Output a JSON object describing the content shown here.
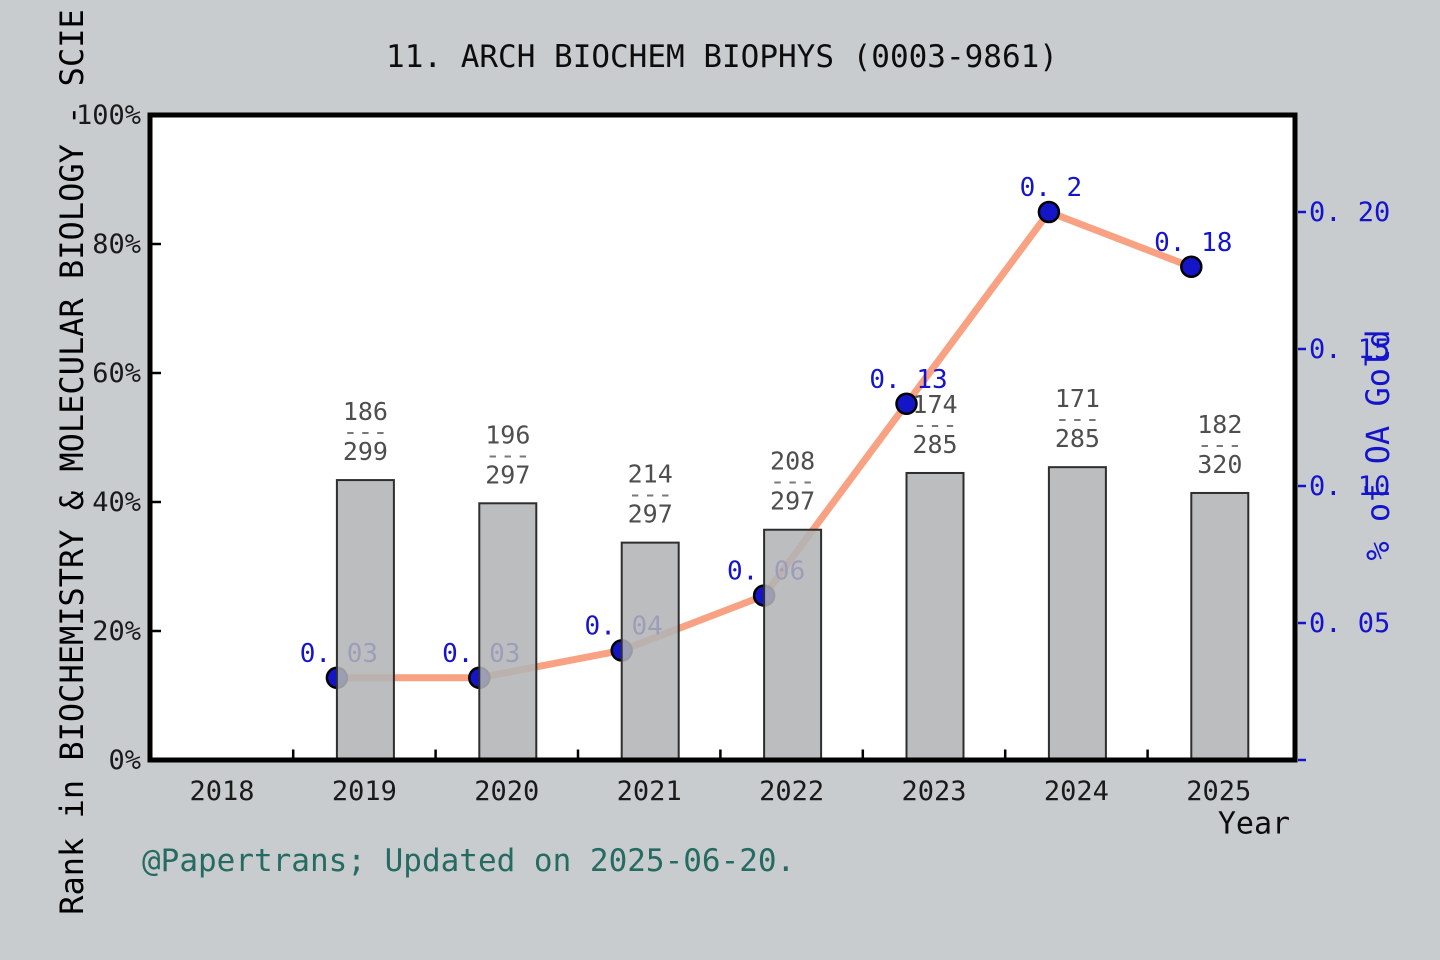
{
  "title": "11. ARCH BIOCHEM BIOPHYS (0003-9861)",
  "footer": "@Papertrans; Updated on 2025-06-20.",
  "left_axis": {
    "label": "Rank in BIOCHEMISTRY & MOLECULAR BIOLOGY - SCIE",
    "ticks": [
      {
        "value": 0,
        "label": "0%"
      },
      {
        "value": 20,
        "label": "20%"
      },
      {
        "value": 40,
        "label": "40%"
      },
      {
        "value": 60,
        "label": "60%"
      },
      {
        "value": 80,
        "label": "80%"
      },
      {
        "value": 100,
        "label": "100%"
      }
    ],
    "range": [
      0,
      100
    ]
  },
  "right_axis": {
    "label": "% of OA Gold",
    "ticks": [
      {
        "value": 0.0,
        "label": ""
      },
      {
        "value": 0.05,
        "label": "0. 05"
      },
      {
        "value": 0.1,
        "label": "0. 10"
      },
      {
        "value": 0.15,
        "label": "0. 15"
      },
      {
        "value": 0.2,
        "label": "0. 20"
      }
    ]
  },
  "x_axis": {
    "label": "Year",
    "ticks": [
      "2018",
      "2019",
      "2020",
      "2021",
      "2022",
      "2023",
      "2024",
      "2025"
    ]
  },
  "chart_data": {
    "type": "bar+line",
    "categories": [
      "2019",
      "2020",
      "2021",
      "2022",
      "2023",
      "2024",
      "2025"
    ],
    "bar_series": {
      "name": "Rank in BIOCHEMISTRY & MOLECULAR BIOLOGY - SCIE",
      "axis": "left",
      "bar_top_percent": [
        43.4,
        39.8,
        33.7,
        35.7,
        44.5,
        45.4,
        41.4
      ],
      "fractions": [
        {
          "numerator": "186",
          "separator": "---",
          "denominator": "299"
        },
        {
          "numerator": "196",
          "separator": "---",
          "denominator": "297"
        },
        {
          "numerator": "214",
          "separator": "---",
          "denominator": "297"
        },
        {
          "numerator": "208",
          "separator": "---",
          "denominator": "297"
        },
        {
          "numerator": "174",
          "separator": "---",
          "denominator": "285"
        },
        {
          "numerator": "171",
          "separator": "---",
          "denominator": "285"
        },
        {
          "numerator": "182",
          "separator": "---",
          "denominator": "320"
        }
      ]
    },
    "line_series": {
      "name": "% of OA Gold",
      "axis": "right",
      "values": [
        0.03,
        0.03,
        0.04,
        0.06,
        0.13,
        0.2,
        0.18
      ],
      "point_labels": [
        "0. 03",
        "0. 03",
        "0. 04",
        "0. 06",
        "0. 13",
        "0. 2",
        "0. 18"
      ]
    },
    "legend": "none",
    "grid": false
  },
  "colors": {
    "figure_background": "#c8ccce",
    "plot_background": "#ffffff",
    "frame": "#000000",
    "bar_fill": "#b1b3b5",
    "bar_stroke": "#2e2e2e",
    "line": "#f9a283",
    "point_fill": "#1515c8",
    "point_stroke": "#000000",
    "blue_text": "#1414cc",
    "fraction_text": "#4e4e4e",
    "fraction_dash": "#787878",
    "footer_text": "#266b62"
  }
}
